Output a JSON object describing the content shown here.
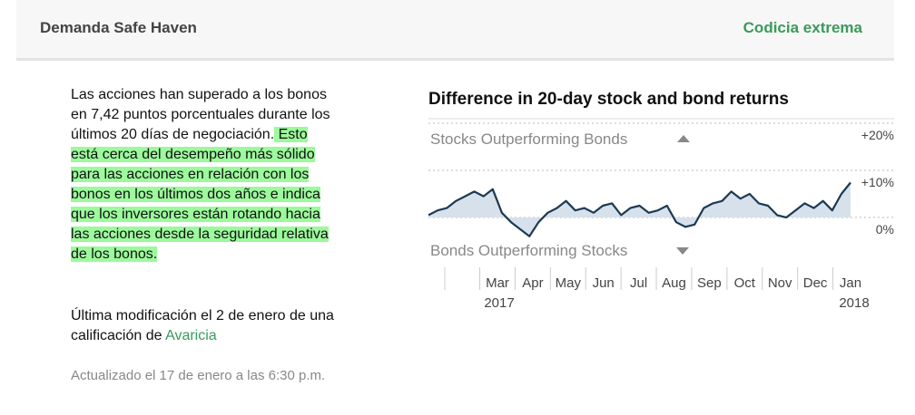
{
  "header": {
    "title": "Demanda Safe Haven",
    "rating": "Codicia extrema"
  },
  "body": {
    "paragraph": {
      "plain": "Las acciones han superado a los bonos en 7,42 puntos porcentuales durante los últimos 20 días de negociación.",
      "highlight": " Esto está cerca del desempeño más sólido para las acciones en relación con los bonos en los últimos dos años e indica que los inversores están rotando hacia las acciones desde la seguridad relativa de los bonos."
    },
    "last_change": {
      "text": "Última modificación el 2 de enero de una calificación de ",
      "rating": "Avaricia"
    },
    "updated": "Actualizado el 17 de enero a las 6:30 p.m."
  },
  "chart_data": {
    "type": "line",
    "title": "Difference in 20-day stock and bond returns",
    "annotations": {
      "top": "Stocks Outperforming Bonds",
      "bottom": "Bonds Outperforming Stocks"
    },
    "xlabels": [
      {
        "label": "Mar",
        "year": "2017"
      },
      {
        "label": "Apr"
      },
      {
        "label": "May"
      },
      {
        "label": "Jun"
      },
      {
        "label": "Jul"
      },
      {
        "label": "Aug"
      },
      {
        "label": "Sep"
      },
      {
        "label": "Oct"
      },
      {
        "label": "Nov"
      },
      {
        "label": "Dec"
      },
      {
        "label": "Jan",
        "year": "2018"
      }
    ],
    "values": [
      0.5,
      1.5,
      2,
      3.5,
      4.5,
      5.5,
      4.5,
      6,
      1,
      -1,
      -2.5,
      -4,
      -1,
      1,
      2,
      3.5,
      1.5,
      2,
      1,
      2.5,
      3,
      0.5,
      2,
      2.5,
      1,
      1.5,
      2.5,
      -1,
      -2,
      -1.5,
      2,
      3,
      3.5,
      5.5,
      4,
      5,
      3,
      2.5,
      0.5,
      0,
      1.5,
      3,
      2,
      3.5,
      1.5,
      5,
      7.4
    ],
    "color": "#1d3a52",
    "fill": "#d6e1ec",
    "ylim": [
      -10,
      20
    ],
    "yticks": [
      {
        "value": 0,
        "label": "0%"
      },
      {
        "value": 10,
        "label": "+10%"
      },
      {
        "value": 20,
        "label": "+20%"
      }
    ],
    "grid": true
  }
}
